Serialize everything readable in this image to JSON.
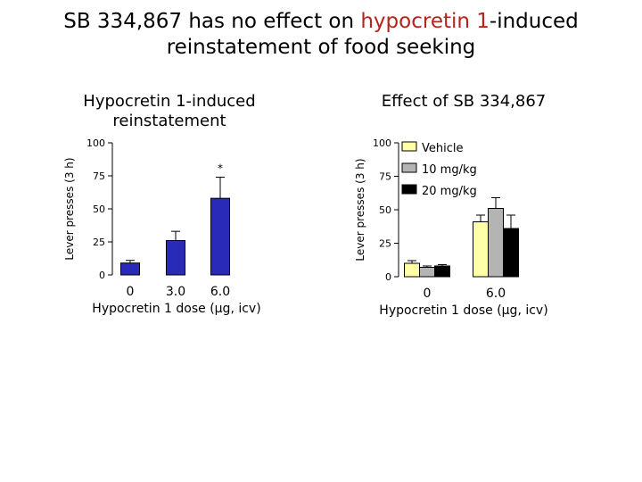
{
  "title": {
    "part1": "SB 334,867 has no effect on ",
    "highlight": "hypocretin 1",
    "part2": "-induced",
    "line2": "reinstatement of food seeking",
    "highlight_color": "#b5231b"
  },
  "chart_data": [
    {
      "type": "bar",
      "title_line1": "Hypocretin 1-induced",
      "title_line2": "reinstatement",
      "ylabel": "Lever presses (3 h)",
      "xlabel": "Hypocretin 1 dose (µg, icv)",
      "ylim": [
        0,
        100
      ],
      "yticks": [
        "0",
        "25",
        "50",
        "75",
        "100"
      ],
      "categories": [
        "0",
        "3.0",
        "6.0"
      ],
      "series": [
        {
          "values": [
            9,
            26,
            58
          ],
          "errors": [
            2,
            7,
            16
          ],
          "color": "#2a2ab8"
        }
      ],
      "annotations": [
        {
          "category": "6.0",
          "text": "*"
        }
      ],
      "grid": false
    },
    {
      "type": "bar",
      "title": "Effect of SB 334,867",
      "ylabel": "Lever presses (3 h)",
      "xlabel": "Hypocretin 1 dose (µg, icv)",
      "ylim": [
        0,
        100
      ],
      "yticks": [
        "0",
        "25",
        "50",
        "75",
        "100"
      ],
      "categories": [
        "0",
        "6.0"
      ],
      "series": [
        {
          "name": "Vehicle",
          "values": [
            10,
            41
          ],
          "errors": [
            2,
            5
          ],
          "color": "#ffffa8"
        },
        {
          "name": "10 mg/kg",
          "values": [
            7,
            51
          ],
          "errors": [
            1,
            8
          ],
          "color": "#b4b4b4"
        },
        {
          "name": "20 mg/kg",
          "values": [
            8,
            36
          ],
          "errors": [
            1,
            10
          ],
          "color": "#000000"
        }
      ],
      "legend_position": "top-right",
      "grid": false
    }
  ]
}
